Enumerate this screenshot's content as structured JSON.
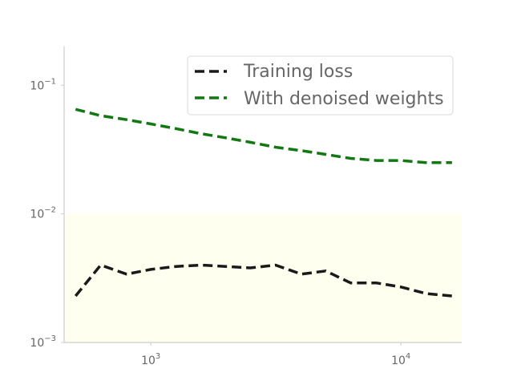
{
  "chart_data": {
    "type": "line",
    "title": "",
    "xlabel": "",
    "ylabel": "",
    "xscale": "log",
    "yscale": "log",
    "xlim": [
      450,
      17500
    ],
    "ylim": [
      0.001,
      0.2
    ],
    "grid": false,
    "legend_position": "top-right",
    "x_ticks": [
      {
        "value": 1000,
        "base": "10",
        "exp": "3"
      },
      {
        "value": 10000,
        "base": "10",
        "exp": "4"
      }
    ],
    "y_ticks": [
      {
        "value": 0.001,
        "base": "10",
        "exp": "−3"
      },
      {
        "value": 0.01,
        "base": "10",
        "exp": "−2"
      },
      {
        "value": 0.1,
        "base": "10",
        "exp": "−1"
      }
    ],
    "shaded_region": {
      "y_from": 0.001,
      "y_to": 0.01,
      "color": "#fffff0"
    },
    "series": [
      {
        "name": "Training loss",
        "color": "#1a1a1a",
        "style": "dashed",
        "x": [
          500,
          630,
          800,
          1000,
          1260,
          1590,
          2000,
          2500,
          3150,
          4000,
          5000,
          6300,
          8000,
          10000,
          12600,
          16000
        ],
        "y": [
          0.0023,
          0.004,
          0.0034,
          0.0037,
          0.0039,
          0.004,
          0.0039,
          0.0038,
          0.004,
          0.0034,
          0.0036,
          0.0029,
          0.0029,
          0.0027,
          0.0024,
          0.0023
        ]
      },
      {
        "name": "With denoised weights",
        "color": "#127812",
        "style": "dashed",
        "x": [
          500,
          630,
          800,
          1000,
          1260,
          1590,
          2000,
          2500,
          3150,
          4000,
          5000,
          6300,
          8000,
          10000,
          12600,
          16000
        ],
        "y": [
          0.065,
          0.058,
          0.054,
          0.05,
          0.046,
          0.042,
          0.039,
          0.036,
          0.033,
          0.031,
          0.029,
          0.027,
          0.026,
          0.026,
          0.025,
          0.025
        ]
      }
    ]
  }
}
